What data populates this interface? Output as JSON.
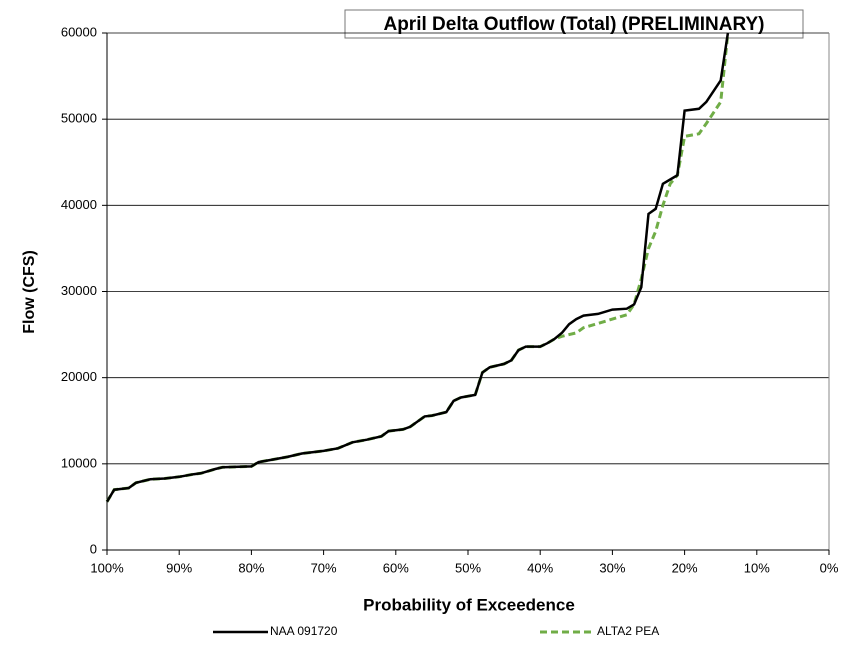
{
  "chart_data": {
    "type": "line",
    "title": "April Delta Outflow (Total) (PRELIMINARY)",
    "x_label": "Probability of Exceedence",
    "y_label": "Flow (CFS)",
    "x": [
      100,
      99,
      97,
      96,
      94,
      92,
      90,
      88,
      87,
      85,
      84,
      80,
      79,
      77,
      75,
      73,
      70,
      68,
      66,
      64,
      62,
      61,
      59,
      58,
      56,
      55,
      53,
      52,
      51,
      49,
      48,
      47,
      45,
      44,
      43,
      42,
      40,
      39,
      38,
      37,
      36,
      35,
      34,
      32,
      30,
      28,
      27,
      26,
      25,
      24,
      23,
      22,
      21,
      20,
      18,
      17,
      15,
      14
    ],
    "series": [
      {
        "name": "NAA 091720",
        "color": "#000000",
        "dash": false,
        "values": [
          5600,
          7000,
          7200,
          7800,
          8200,
          8300,
          8500,
          8800,
          8900,
          9400,
          9600,
          9700,
          10200,
          10500,
          10800,
          11200,
          11500,
          11800,
          12500,
          12800,
          13200,
          13800,
          14000,
          14300,
          15500,
          15600,
          16000,
          17300,
          17700,
          18000,
          20600,
          21200,
          21600,
          22000,
          23200,
          23600,
          23600,
          24000,
          24500,
          25200,
          26200,
          26800,
          27200,
          27400,
          27900,
          28000,
          28500,
          30500,
          39000,
          39600,
          42500,
          43000,
          43500,
          51000,
          51200,
          52000,
          54500,
          60000
        ]
      },
      {
        "name": "ALTA2 PEA",
        "color": "#70ad47",
        "dash": true,
        "values": [
          5600,
          7000,
          7200,
          7800,
          8200,
          8300,
          8500,
          8800,
          8900,
          9400,
          9600,
          9700,
          10200,
          10500,
          10800,
          11200,
          11500,
          11800,
          12500,
          12800,
          13200,
          13800,
          14000,
          14300,
          15500,
          15600,
          16000,
          17300,
          17700,
          18000,
          20600,
          21200,
          21600,
          22000,
          23200,
          23600,
          23600,
          24000,
          24500,
          24800,
          25000,
          25200,
          25800,
          26300,
          26800,
          27300,
          28500,
          31500,
          35000,
          37000,
          40000,
          42500,
          43500,
          48000,
          48300,
          49500,
          52000,
          60000
        ]
      }
    ],
    "xlim": [
      100,
      0
    ],
    "xticks": [
      {
        "value": 100,
        "label": "100%"
      },
      {
        "value": 90,
        "label": "90%"
      },
      {
        "value": 80,
        "label": "80%"
      },
      {
        "value": 70,
        "label": "70%"
      },
      {
        "value": 60,
        "label": "60%"
      },
      {
        "value": 50,
        "label": "50%"
      },
      {
        "value": 40,
        "label": "40%"
      },
      {
        "value": 30,
        "label": "30%"
      },
      {
        "value": 20,
        "label": "20%"
      },
      {
        "value": 10,
        "label": "10%"
      },
      {
        "value": 0,
        "label": "0%"
      }
    ],
    "ylim": [
      0,
      60000
    ],
    "yticks": [
      0,
      10000,
      20000,
      30000,
      40000,
      50000,
      60000
    ],
    "grid": true
  }
}
